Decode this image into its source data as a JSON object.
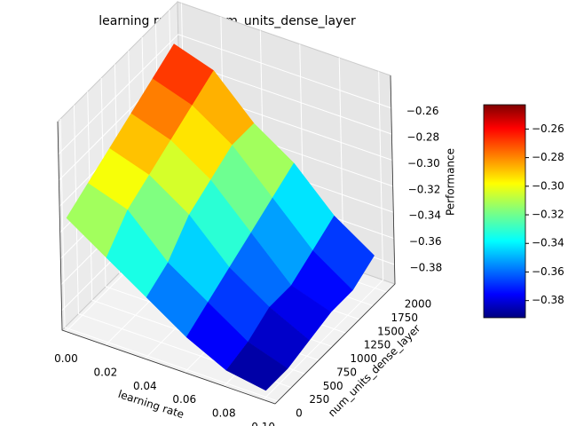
{
  "chart_data": {
    "type": "surface",
    "title": "learning rate and num_units_dense_layer",
    "xlabel": "learning rate",
    "ylabel": "num_units_dense_layer",
    "zlabel": "Performance",
    "colormap": "jet",
    "x": [
      0,
      0.02,
      0.04,
      0.06,
      0.08,
      0.1
    ],
    "y": [
      0,
      400,
      800,
      1200,
      1600,
      2000
    ],
    "z": [
      [
        -0.31,
        -0.33,
        -0.35,
        -0.37,
        -0.385,
        -0.39
      ],
      [
        -0.3,
        -0.31,
        -0.34,
        -0.36,
        -0.38,
        -0.39
      ],
      [
        -0.29,
        -0.3,
        -0.32,
        -0.35,
        -0.37,
        -0.385
      ],
      [
        -0.28,
        -0.29,
        -0.31,
        -0.34,
        -0.37,
        -0.38
      ],
      [
        -0.27,
        -0.28,
        -0.3,
        -0.33,
        -0.36,
        -0.38
      ],
      [
        -0.26,
        -0.27,
        -0.3,
        -0.32,
        -0.35,
        -0.37
      ]
    ],
    "xlim": [
      -0.002,
      0.106
    ],
    "ylim": [
      -50,
      2150
    ],
    "zlim": [
      -0.395,
      -0.235
    ],
    "clim": [
      -0.392,
      -0.243
    ],
    "xticks": [
      {
        "value": 0,
        "label": "0.00"
      },
      {
        "value": 0.02,
        "label": "0.02"
      },
      {
        "value": 0.04,
        "label": "0.04"
      },
      {
        "value": 0.06,
        "label": "0.06"
      },
      {
        "value": 0.08,
        "label": "0.08"
      },
      {
        "value": 0.1,
        "label": "0.10"
      }
    ],
    "yticks": [
      0,
      250,
      500,
      750,
      1000,
      1250,
      1500,
      1750,
      2000
    ],
    "zticks": [
      {
        "value": -0.38,
        "label": "−0.38"
      },
      {
        "value": -0.36,
        "label": "−0.36"
      },
      {
        "value": -0.34,
        "label": "−0.34"
      },
      {
        "value": -0.32,
        "label": "−0.32"
      },
      {
        "value": -0.3,
        "label": "−0.30"
      },
      {
        "value": -0.28,
        "label": "−0.28"
      },
      {
        "value": -0.26,
        "label": "−0.26"
      }
    ],
    "cbar_ticks": [
      {
        "value": -0.38,
        "label": "−0.38"
      },
      {
        "value": -0.36,
        "label": "−0.36"
      },
      {
        "value": -0.34,
        "label": "−0.34"
      },
      {
        "value": -0.32,
        "label": "−0.32"
      },
      {
        "value": -0.3,
        "label": "−0.30"
      },
      {
        "value": -0.28,
        "label": "−0.28"
      },
      {
        "value": -0.26,
        "label": "−0.26"
      }
    ],
    "grid": true
  }
}
